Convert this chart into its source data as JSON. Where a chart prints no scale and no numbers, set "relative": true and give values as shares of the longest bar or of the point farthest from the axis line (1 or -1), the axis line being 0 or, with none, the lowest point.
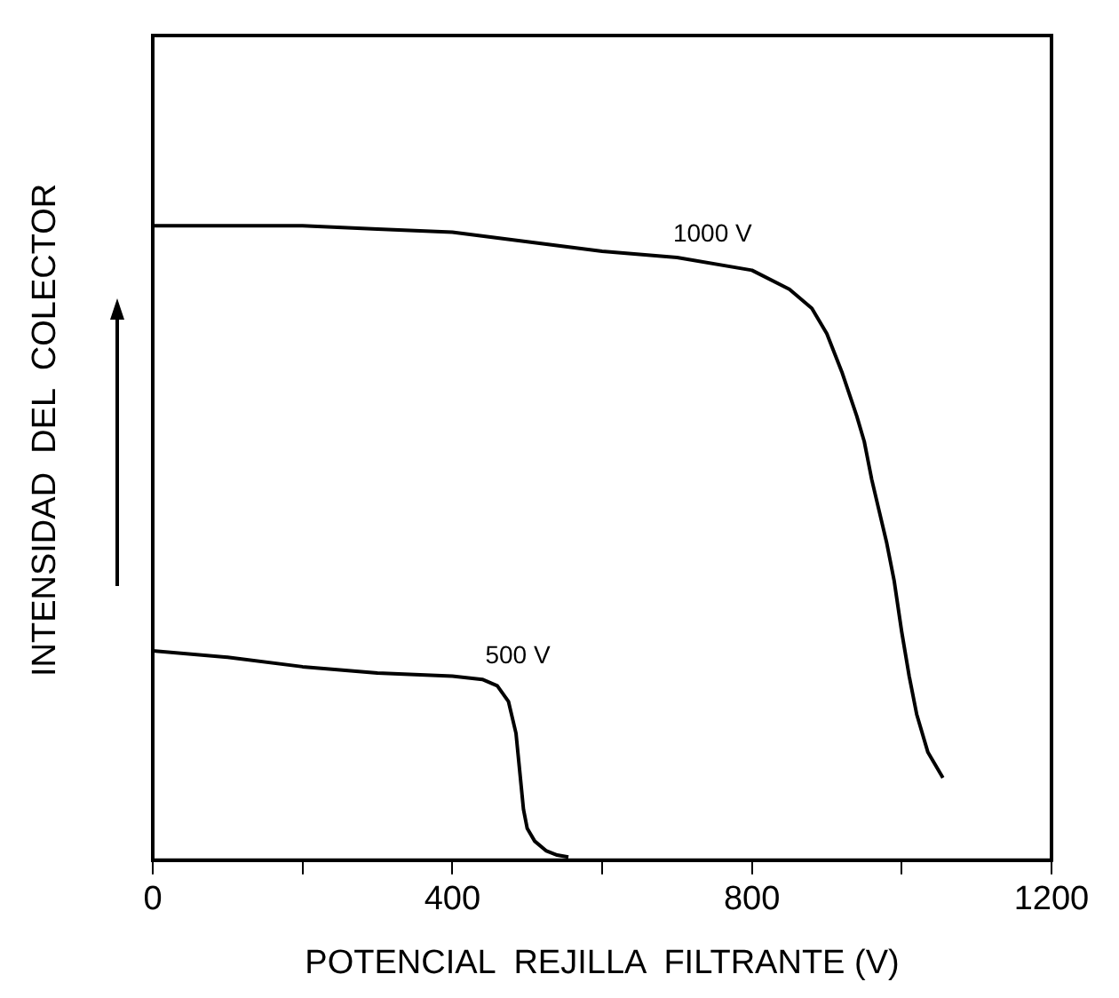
{
  "chart_data": {
    "type": "line",
    "relative": true,
    "xlabel": "POTENCIAL  REJILLA  FILTRANTE (V)",
    "ylabel": "INTENSIDAD  DEL  COLECTOR",
    "xlim": [
      0,
      1200
    ],
    "xticks": [
      0,
      {
        "value": 200,
        "label": null
      },
      400,
      {
        "value": 600,
        "label": null
      },
      800,
      {
        "value": 1000,
        "label": null
      },
      1200
    ],
    "grid": false,
    "legend": false,
    "marker": "none",
    "line_style": "solid",
    "series": [
      {
        "name": "1000 V",
        "color": "#000000",
        "x": [
          0,
          100,
          200,
          300,
          400,
          500,
          600,
          700,
          800,
          850,
          880,
          900,
          920,
          940,
          950,
          960,
          970,
          980,
          990,
          1000,
          1010,
          1020,
          1035,
          1055
        ],
        "values": [
          1.0,
          1.0,
          1.0,
          0.995,
          0.99,
          0.975,
          0.96,
          0.95,
          0.93,
          0.9,
          0.87,
          0.83,
          0.77,
          0.7,
          0.66,
          0.6,
          0.55,
          0.5,
          0.44,
          0.36,
          0.29,
          0.23,
          0.17,
          0.13
        ]
      },
      {
        "name": "500 V",
        "color": "#000000",
        "x": [
          0,
          100,
          200,
          300,
          400,
          440,
          460,
          475,
          485,
          490,
          495,
          500,
          510,
          525,
          540,
          555
        ],
        "values": [
          0.33,
          0.32,
          0.305,
          0.295,
          0.29,
          0.285,
          0.275,
          0.25,
          0.2,
          0.14,
          0.08,
          0.05,
          0.03,
          0.015,
          0.008,
          0.005
        ]
      }
    ]
  }
}
